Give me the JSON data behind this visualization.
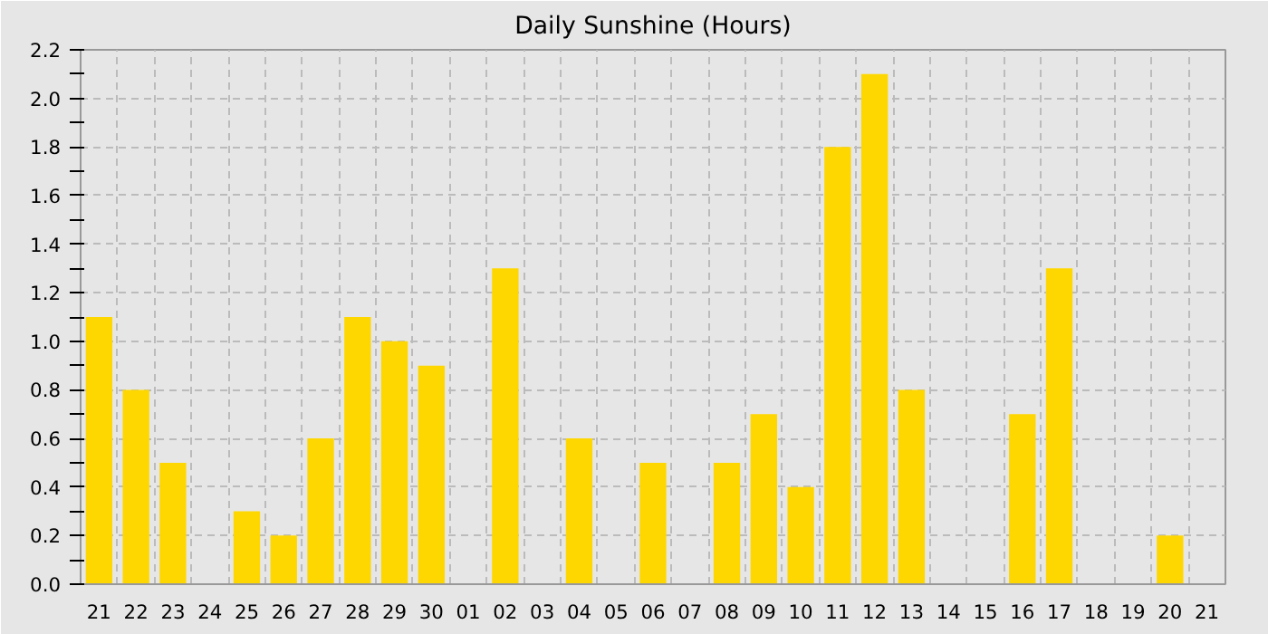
{
  "chart_data": {
    "type": "bar",
    "title": "Daily Sunshine (Hours)",
    "categories": [
      "21",
      "22",
      "23",
      "24",
      "25",
      "26",
      "27",
      "28",
      "29",
      "30",
      "01",
      "02",
      "03",
      "04",
      "05",
      "06",
      "07",
      "08",
      "09",
      "10",
      "11",
      "12",
      "13",
      "14",
      "15",
      "16",
      "17",
      "18",
      "19",
      "20",
      "21"
    ],
    "values": [
      1.1,
      0.8,
      0.5,
      0,
      0.3,
      0.2,
      0.6,
      1.1,
      1.0,
      0.9,
      0,
      1.3,
      0,
      0.6,
      0,
      0.5,
      0,
      0.5,
      0.7,
      0.4,
      1.8,
      2.1,
      0.8,
      0,
      0,
      0.7,
      1.3,
      0,
      0,
      0.2,
      0
    ],
    "color": "#ffd700",
    "ylim": [
      0,
      2.2
    ],
    "yticks": [
      {
        "value": 0,
        "label": "0.0"
      },
      {
        "value": 0.1,
        "label": null
      },
      0.2,
      {
        "value": 0.3,
        "label": null
      },
      0.4,
      {
        "value": 0.5,
        "label": null
      },
      0.6,
      {
        "value": 0.7,
        "label": null
      },
      0.8,
      {
        "value": 0.9,
        "label": null
      },
      {
        "value": 1,
        "label": "1.0"
      },
      {
        "value": 1.1,
        "label": null
      },
      1.2,
      {
        "value": 1.3,
        "label": null
      },
      1.4,
      {
        "value": 1.5,
        "label": null
      },
      1.6,
      {
        "value": 1.7,
        "label": null
      },
      1.8,
      {
        "value": 1.9,
        "label": null
      },
      {
        "value": 2,
        "label": "2.0"
      },
      {
        "value": 2.1,
        "label": null
      },
      2.2
    ],
    "grid": true
  }
}
